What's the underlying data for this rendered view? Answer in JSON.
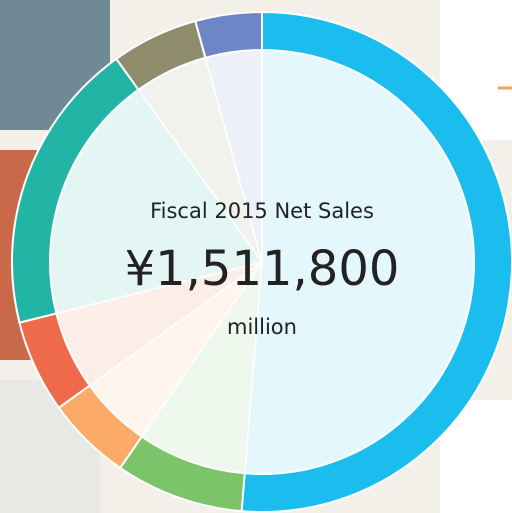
{
  "chart_data": {
    "type": "donut",
    "title": "Fiscal 2015 Net Sales",
    "center_value": "¥1,511,800",
    "center_unit": "million",
    "values": [
      51.3,
      8.3,
      5.5,
      6.0,
      19.0,
      5.6,
      4.3
    ],
    "colors": [
      "#1bbdee",
      "#7cc46a",
      "#fbaa67",
      "#ef6a4a",
      "#22b5a6",
      "#8e8c6c",
      "#6d86c6"
    ]
  }
}
